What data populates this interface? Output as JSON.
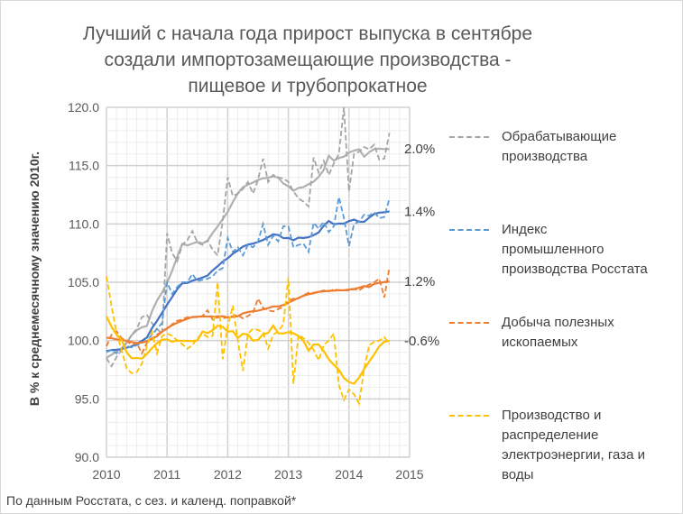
{
  "chart_data": {
    "type": "line",
    "title": "Лучший с начала года прирост выпуска в сентябре создали импортозамещающие производства - пищевое и трубопрокатное",
    "title_lines": [
      "Лучший с начала года прирост выпуска в сентябре",
      "создали импортозамещающие  производства -",
      "пищевое и трубопрокатное"
    ],
    "ylabel": "В % к среднемесячному значению 2010г.",
    "xlabel": "",
    "footnote": "По данным Росстата, с сез. и календ. поправкой*",
    "x_start": 2010,
    "x_step_months": 1,
    "xlim": [
      2010,
      2015
    ],
    "ylim": [
      90,
      120
    ],
    "x_ticks": [
      "2010",
      "2011",
      "2012",
      "2013",
      "2014",
      "2015"
    ],
    "y_ticks": [
      "90.0",
      "95.0",
      "100.0",
      "105.0",
      "110.0",
      "115.0",
      "120.0"
    ],
    "grid": true,
    "legend_position": "right",
    "series": [
      {
        "name": "Обрабатывающие производства",
        "legend_lines": [
          "Обрабатывающие",
          "производства"
        ],
        "color": "#a5a5a5",
        "trend_color": "#b0b0b0",
        "end_label": "2.0%",
        "values": [
          98.5,
          97.8,
          98.6,
          99.2,
          99.8,
          100.5,
          101,
          102,
          102.2,
          101.5,
          101,
          100.6,
          109.2,
          107.5,
          106.8,
          108.2,
          108.6,
          109.4,
          108.4,
          108.2,
          108.6,
          107.8,
          107.3,
          110.2,
          114,
          112.4,
          112.6,
          113,
          113.6,
          112.6,
          113.8,
          115.6,
          113.6,
          114.2,
          114,
          113.9,
          113.6,
          112.8,
          112.2,
          111.9,
          111.5,
          115.7,
          114.4,
          115.4,
          114.2,
          115.2,
          116,
          120,
          112.8,
          116,
          116.2,
          116.6,
          116.4,
          116.8,
          115.5,
          115.6,
          117.8
        ]
      },
      {
        "name": "Индекс промышленного производства Росстата",
        "legend_lines": [
          "Индекс",
          "промышленного",
          "производства Росстата"
        ],
        "color": "#5b9bd5",
        "trend_color": "#4472c4",
        "end_label": "1.4%",
        "values": [
          99,
          99.2,
          98.9,
          99.3,
          99.5,
          99.4,
          99.6,
          99.8,
          100,
          100.5,
          101,
          101.5,
          105,
          104,
          104.6,
          105,
          105,
          105.7,
          105.1,
          105.2,
          105.3,
          105.5,
          106,
          106.2,
          108.8,
          107.6,
          108,
          107.3,
          108.2,
          108,
          108.5,
          110,
          108.2,
          109,
          108.5,
          109.8,
          109.8,
          108,
          108.2,
          108.3,
          107.6,
          110.1,
          109.6,
          110.2,
          109.3,
          109.8,
          112.3,
          110.5,
          108.1,
          110,
          110.2,
          110.8,
          110.7,
          111,
          110.5,
          110.6,
          112.2
        ]
      },
      {
        "name": "Добыча полезных ископаемых",
        "legend_lines": [
          "Добыча полезных",
          "ископаемых"
        ],
        "color": "#ed7d31",
        "trend_color": "#ed7d31",
        "end_label": "1.2%",
        "values": [
          99.5,
          100.5,
          100.8,
          100.2,
          100,
          99.6,
          99.8,
          98.9,
          99.8,
          100.2,
          100.5,
          100.8,
          101,
          101.4,
          101.7,
          101.8,
          102,
          102,
          102,
          102.1,
          102.6,
          101.8,
          102,
          101.9,
          102,
          102.1,
          102.2,
          101.9,
          102.1,
          102.4,
          103.6,
          102.8,
          102.6,
          102.5,
          102.7,
          102.9,
          103.4,
          103.6,
          103.6,
          103.9,
          104.1,
          104.1,
          104.2,
          104.3,
          104.2,
          104.4,
          104.3,
          104.3,
          104.3,
          104.4,
          104.3,
          104.6,
          104.8,
          105,
          105.3,
          103.7,
          106.3
        ]
      },
      {
        "name": "Производство и распределение электроэнергии, газа и воды",
        "legend_lines": [
          "Производство и",
          "распределение",
          "электроэнергии, газа и",
          "воды"
        ],
        "color": "#ffc000",
        "trend_color": "#ffc000",
        "end_label": "-0.6%",
        "values": [
          105.5,
          103,
          100.6,
          99.2,
          97.6,
          97.2,
          97.3,
          98,
          99.5,
          100.7,
          98.9,
          100.4,
          100.6,
          100.4,
          100,
          99.7,
          99.3,
          99.6,
          100.2,
          100.6,
          100.3,
          100.4,
          105,
          98.4,
          101.2,
          103,
          100,
          97.4,
          100.6,
          101,
          100.9,
          100.7,
          99.3,
          100.5,
          100.8,
          101.4,
          105.4,
          96.3,
          100.5,
          100.2,
          99.8,
          99.2,
          98.3,
          99.6,
          100,
          100.6,
          96.2,
          94.9,
          95.8,
          95.4,
          94.6,
          97.6,
          99.6,
          99.9,
          100,
          100.3,
          99.7
        ]
      }
    ]
  }
}
